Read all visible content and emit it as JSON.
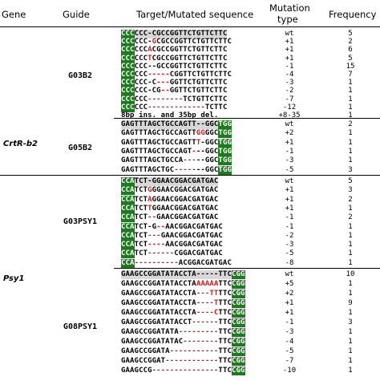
{
  "headers": {
    "gene": "Gene",
    "guide": "Guide",
    "target": "Target/Mutated sequence",
    "mutation_line1": "Mutation",
    "mutation_line2": "type",
    "frequency": "Frequency"
  },
  "genes": [
    {
      "name": "CrtR-b2"
    },
    {
      "name": "Psy1"
    }
  ],
  "guides": [
    {
      "name": "G03B2",
      "rows": [
        {
          "segs": [
            {
              "t": "CCC",
              "s": "pam"
            },
            {
              "t": "CCC-CGCCGGTTCTGTTCTTC",
              "s": "tgt"
            }
          ],
          "type": "wt",
          "freq": "5"
        },
        {
          "segs": [
            {
              "t": "CCC",
              "s": "pam"
            },
            {
              "t": "CCC-",
              "s": "nrm"
            },
            {
              "t": "G",
              "s": "mut"
            },
            {
              "t": "CGCCGGTTCTGTTCTTC",
              "s": "nrm"
            }
          ],
          "type": "+1",
          "freq": "2"
        },
        {
          "segs": [
            {
              "t": "CCC",
              "s": "pam"
            },
            {
              "t": "CCC",
              "s": "nrm"
            },
            {
              "t": "A",
              "s": "mut"
            },
            {
              "t": "CGCCGGTTCTGTTCTTC",
              "s": "nrm"
            }
          ],
          "type": "+1",
          "freq": "6"
        },
        {
          "segs": [
            {
              "t": "CCC",
              "s": "pam"
            },
            {
              "t": "CCC",
              "s": "nrm"
            },
            {
              "t": "T",
              "s": "mut"
            },
            {
              "t": "CGCCGGTTCTGTTCTTC",
              "s": "nrm"
            }
          ],
          "type": "+1",
          "freq": "5"
        },
        {
          "segs": [
            {
              "t": "CCC",
              "s": "pam"
            },
            {
              "t": "CCC--GCCGGTTCTGTTCTTC",
              "s": "nrm"
            }
          ],
          "type": "-1",
          "freq": "15"
        },
        {
          "segs": [
            {
              "t": "CCC",
              "s": "pam"
            },
            {
              "t": "CCC",
              "s": "nrm"
            },
            {
              "t": "-----",
              "s": "mut"
            },
            {
              "t": "CGGTTCTGTTCTTC",
              "s": "nrm"
            }
          ],
          "type": "-4",
          "freq": "7"
        },
        {
          "segs": [
            {
              "t": "CCC",
              "s": "pam"
            },
            {
              "t": "CCC-C",
              "s": "nrm"
            },
            {
              "t": "---",
              "s": "mut"
            },
            {
              "t": "GGTTCTGTTCTTC",
              "s": "nrm"
            }
          ],
          "type": "-3",
          "freq": "1"
        },
        {
          "segs": [
            {
              "t": "CCC",
              "s": "pam"
            },
            {
              "t": "CCC-CG",
              "s": "nrm"
            },
            {
              "t": "--",
              "s": "mut"
            },
            {
              "t": "GGTTCTGTTCTTC",
              "s": "nrm"
            }
          ],
          "type": "-2",
          "freq": "1"
        },
        {
          "segs": [
            {
              "t": "CCC",
              "s": "pam"
            },
            {
              "t": "CCC",
              "s": "nrm"
            },
            {
              "t": "--------",
              "s": "mut"
            },
            {
              "t": "TCTGTTCTTC",
              "s": "nrm"
            }
          ],
          "type": "-7",
          "freq": "1"
        },
        {
          "segs": [
            {
              "t": "CCC",
              "s": "pam"
            },
            {
              "t": "CCC",
              "s": "nrm"
            },
            {
              "t": "-------------",
              "s": "mut"
            },
            {
              "t": "TCTTC",
              "s": "nrm"
            }
          ],
          "type": "-12",
          "freq": "1"
        },
        {
          "segs": [
            {
              "t": "8bp ins. and 35bp del.",
              "s": "nrm"
            }
          ],
          "type": "+8-35",
          "freq": "1"
        }
      ]
    },
    {
      "name": "G05B2",
      "rows": [
        {
          "segs": [
            {
              "t": "GAGTTTAGCTGCCAGTT--GGC",
              "s": "tgt"
            },
            {
              "t": "TGG",
              "s": "pam"
            }
          ],
          "type": "wt",
          "freq": "2"
        },
        {
          "segs": [
            {
              "t": "GAGTTTAGCTGCCAGTT",
              "s": "nrm"
            },
            {
              "t": "GG",
              "s": "mut"
            },
            {
              "t": "GGC",
              "s": "nrm"
            },
            {
              "t": "TGG",
              "s": "pam"
            }
          ],
          "type": "+2",
          "freq": "1"
        },
        {
          "segs": [
            {
              "t": "GAGTTTAGCTGCCAGTT",
              "s": "nrm"
            },
            {
              "t": "T",
              "s": "mut"
            },
            {
              "t": "-GGC",
              "s": "nrm"
            },
            {
              "t": "TGG",
              "s": "pam"
            }
          ],
          "type": "+1",
          "freq": "1"
        },
        {
          "segs": [
            {
              "t": "GAGTTTAGCTGCCAGT",
              "s": "nrm"
            },
            {
              "t": "-",
              "s": "mut"
            },
            {
              "t": "--GGC",
              "s": "nrm"
            },
            {
              "t": "TGG",
              "s": "pam"
            }
          ],
          "type": "-1",
          "freq": "1"
        },
        {
          "segs": [
            {
              "t": "GAGTTTAGCTGCCA",
              "s": "nrm"
            },
            {
              "t": "---",
              "s": "mut"
            },
            {
              "t": "--GGC",
              "s": "nrm"
            },
            {
              "t": "TGG",
              "s": "pam"
            }
          ],
          "type": "-3",
          "freq": "1"
        },
        {
          "segs": [
            {
              "t": "GAGTTTAGCTGC",
              "s": "nrm"
            },
            {
              "t": "-----",
              "s": "mut"
            },
            {
              "t": "--GGC",
              "s": "nrm"
            },
            {
              "t": "TGG",
              "s": "pam"
            }
          ],
          "type": "-5",
          "freq": "3"
        }
      ]
    },
    {
      "name": "G03PSY1",
      "rows": [
        {
          "segs": [
            {
              "t": "CCA",
              "s": "pam"
            },
            {
              "t": "TCT-GGAACGGACGATGAC",
              "s": "tgt"
            }
          ],
          "type": "wt",
          "freq": "5"
        },
        {
          "segs": [
            {
              "t": "CCA",
              "s": "pam"
            },
            {
              "t": "TCT",
              "s": "nrm"
            },
            {
              "t": "G",
              "s": "mut"
            },
            {
              "t": "GGAACGGACGATGAC",
              "s": "nrm"
            }
          ],
          "type": "+1",
          "freq": "3"
        },
        {
          "segs": [
            {
              "t": "CCA",
              "s": "pam"
            },
            {
              "t": "TCT",
              "s": "nrm"
            },
            {
              "t": "A",
              "s": "mut"
            },
            {
              "t": "GGAACGGACGATGAC",
              "s": "nrm"
            }
          ],
          "type": "+1",
          "freq": "2"
        },
        {
          "segs": [
            {
              "t": "CCA",
              "s": "pam"
            },
            {
              "t": "TCT",
              "s": "nrm"
            },
            {
              "t": "T",
              "s": "mut"
            },
            {
              "t": "GGAACGGACGATGAC",
              "s": "nrm"
            }
          ],
          "type": "+1",
          "freq": "1"
        },
        {
          "segs": [
            {
              "t": "CCA",
              "s": "pam"
            },
            {
              "t": "TCT",
              "s": "nrm"
            },
            {
              "t": "--",
              "s": "mut"
            },
            {
              "t": "GAACGGACGATGAC",
              "s": "nrm"
            }
          ],
          "type": "-1",
          "freq": "2"
        },
        {
          "segs": [
            {
              "t": "CCA",
              "s": "pam"
            },
            {
              "t": "TCT-G",
              "s": "nrm"
            },
            {
              "t": "--",
              "s": "mut"
            },
            {
              "t": "AACGGACGATGAC",
              "s": "nrm"
            }
          ],
          "type": "-1",
          "freq": "1"
        },
        {
          "segs": [
            {
              "t": "CCA",
              "s": "pam"
            },
            {
              "t": "TCT",
              "s": "nrm"
            },
            {
              "t": "---",
              "s": "mut"
            },
            {
              "t": "GAACGGACGATGAC",
              "s": "nrm"
            }
          ],
          "type": "-2",
          "freq": "1"
        },
        {
          "segs": [
            {
              "t": "CCA",
              "s": "pam"
            },
            {
              "t": "TCT",
              "s": "nrm"
            },
            {
              "t": "----",
              "s": "mut"
            },
            {
              "t": "AACGGACGATGAC",
              "s": "nrm"
            }
          ],
          "type": "-3",
          "freq": "1"
        },
        {
          "segs": [
            {
              "t": "CCA",
              "s": "pam"
            },
            {
              "t": "TCT",
              "s": "nrm"
            },
            {
              "t": "------",
              "s": "mut"
            },
            {
              "t": "CGGACGATGAC",
              "s": "nrm"
            }
          ],
          "type": "-5",
          "freq": "1"
        },
        {
          "segs": [
            {
              "t": "CCA",
              "s": "pam"
            },
            {
              "t": "----------",
              "s": "mut"
            },
            {
              "t": "ACGGACGATGAC",
              "s": "nrm"
            }
          ],
          "type": "-8",
          "freq": "1"
        }
      ]
    },
    {
      "name": "G08PSY1",
      "rows": [
        {
          "segs": [
            {
              "t": "GAAGCCGGATATACCTA-----TTC",
              "s": "tgt"
            },
            {
              "t": "CGG",
              "s": "pam"
            }
          ],
          "type": "wt",
          "freq": "10"
        },
        {
          "segs": [
            {
              "t": "GAAGCCGGATATACCTA",
              "s": "nrm"
            },
            {
              "t": "AAAAA",
              "s": "mut"
            },
            {
              "t": "TTC",
              "s": "nrm"
            },
            {
              "t": "CGG",
              "s": "pam"
            }
          ],
          "type": "+5",
          "freq": "1"
        },
        {
          "segs": [
            {
              "t": "GAAGCCGGATATACCTA",
              "s": "nrm"
            },
            {
              "t": "---TT",
              "s": "mut"
            },
            {
              "t": "TTC",
              "s": "nrm"
            },
            {
              "t": "CGG",
              "s": "pam"
            }
          ],
          "type": "+2",
          "freq": "1"
        },
        {
          "segs": [
            {
              "t": "GAAGCCGGATATACCTA",
              "s": "nrm"
            },
            {
              "t": "----T",
              "s": "mut"
            },
            {
              "t": "TTC",
              "s": "nrm"
            },
            {
              "t": "CGG",
              "s": "pam"
            }
          ],
          "type": "+1",
          "freq": "9"
        },
        {
          "segs": [
            {
              "t": "GAAGCCGGATATACCTA",
              "s": "nrm"
            },
            {
              "t": "----C",
              "s": "mut"
            },
            {
              "t": "TTC",
              "s": "nrm"
            },
            {
              "t": "CGG",
              "s": "pam"
            }
          ],
          "type": "+1",
          "freq": "1"
        },
        {
          "segs": [
            {
              "t": "GAAGCCGGATATACCT",
              "s": "nrm"
            },
            {
              "t": "------",
              "s": "mut"
            },
            {
              "t": "TTC",
              "s": "nrm"
            },
            {
              "t": "CGG",
              "s": "pam"
            }
          ],
          "type": "-1",
          "freq": "3"
        },
        {
          "segs": [
            {
              "t": "GAAGCCGGATATA",
              "s": "nrm"
            },
            {
              "t": "---------",
              "s": "mut"
            },
            {
              "t": "TTC",
              "s": "nrm"
            },
            {
              "t": "CGG",
              "s": "pam"
            }
          ],
          "type": "-3",
          "freq": "1"
        },
        {
          "segs": [
            {
              "t": "GAAGCCGGATATAC",
              "s": "nrm"
            },
            {
              "t": "--------",
              "s": "mut"
            },
            {
              "t": "TTC",
              "s": "nrm"
            },
            {
              "t": "CGG",
              "s": "pam"
            }
          ],
          "type": "-4",
          "freq": "1"
        },
        {
          "segs": [
            {
              "t": "GAAGCCGGATA",
              "s": "nrm"
            },
            {
              "t": "-----------",
              "s": "mut"
            },
            {
              "t": "TTC",
              "s": "nrm"
            },
            {
              "t": "CGG",
              "s": "pam"
            }
          ],
          "type": "-5",
          "freq": "1"
        },
        {
          "segs": [
            {
              "t": "GAAGCCGGAT",
              "s": "nrm"
            },
            {
              "t": "------------",
              "s": "mut"
            },
            {
              "t": "TTC",
              "s": "nrm"
            },
            {
              "t": "CGG",
              "s": "pam"
            }
          ],
          "type": "-7",
          "freq": "1"
        },
        {
          "segs": [
            {
              "t": "GAAGCCG",
              "s": "nrm"
            },
            {
              "t": "---------------",
              "s": "mut"
            },
            {
              "t": "TTC",
              "s": "nrm"
            },
            {
              "t": "CGG",
              "s": "pam"
            }
          ],
          "type": "-10",
          "freq": "1"
        }
      ]
    }
  ]
}
